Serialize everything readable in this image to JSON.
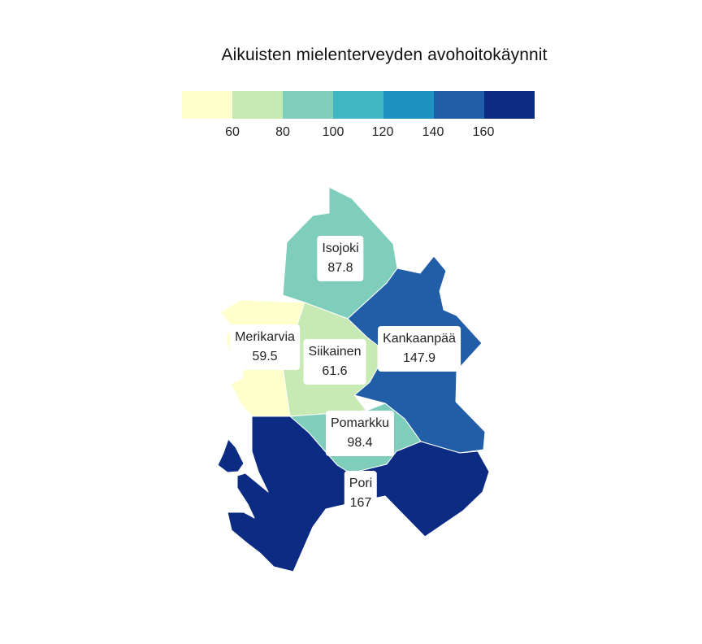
{
  "title": "Aikuisten mielenterveyden avohoitokäynnit",
  "legend": {
    "colors": [
      "#ffffcc",
      "#c7e9b4",
      "#7fcdbb",
      "#41b6c4",
      "#1d91c0",
      "#225ea8",
      "#0c2c84"
    ],
    "ticks": [
      "60",
      "80",
      "100",
      "120",
      "140",
      "160"
    ]
  },
  "regions": [
    {
      "name": "Isojoki",
      "value": "87.8",
      "color": "#7fcdbb"
    },
    {
      "name": "Kankaanpää",
      "value": "147.9",
      "color": "#225ea8"
    },
    {
      "name": "Merikarvia",
      "value": "59.5",
      "color": "#ffffcc"
    },
    {
      "name": "Siikainen",
      "value": "61.6",
      "color": "#c7e9b4"
    },
    {
      "name": "Pomarkku",
      "value": "98.4",
      "color": "#7fcdbb"
    },
    {
      "name": "Pori",
      "value": "167",
      "color": "#0c2c84"
    }
  ]
}
